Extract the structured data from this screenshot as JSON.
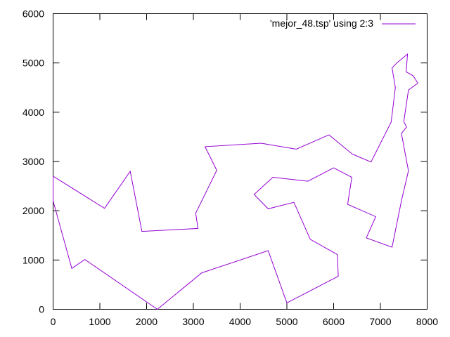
{
  "chart_data": {
    "type": "line",
    "title": "",
    "xlabel": "",
    "ylabel": "",
    "xlim": [
      0,
      8000
    ],
    "ylim": [
      0,
      6000
    ],
    "xticks": [
      0,
      1000,
      2000,
      3000,
      4000,
      5000,
      6000,
      7000,
      8000
    ],
    "yticks": [
      0,
      1000,
      2000,
      3000,
      4000,
      5000,
      6000
    ],
    "grid": false,
    "legend_position": "top-right",
    "series": [
      {
        "name": "'mejor_48.tsp' using 2:3",
        "color": "#9400d3",
        "points": [
          [
            0,
            2700
          ],
          [
            0,
            2200
          ],
          [
            400,
            830
          ],
          [
            680,
            1010
          ],
          [
            2230,
            0
          ],
          [
            3180,
            740
          ],
          [
            4600,
            1190
          ],
          [
            5000,
            130
          ],
          [
            6100,
            670
          ],
          [
            6080,
            1110
          ],
          [
            5500,
            1420
          ],
          [
            5150,
            2170
          ],
          [
            4600,
            2040
          ],
          [
            4300,
            2330
          ],
          [
            4700,
            2680
          ],
          [
            5450,
            2600
          ],
          [
            6000,
            2870
          ],
          [
            6390,
            2680
          ],
          [
            6300,
            2130
          ],
          [
            6900,
            1880
          ],
          [
            6700,
            1450
          ],
          [
            7250,
            1260
          ],
          [
            7450,
            2200
          ],
          [
            7600,
            2810
          ],
          [
            7450,
            3570
          ],
          [
            7560,
            3700
          ],
          [
            7500,
            3810
          ],
          [
            7600,
            4450
          ],
          [
            7800,
            4590
          ],
          [
            7700,
            4740
          ],
          [
            7550,
            4820
          ],
          [
            7580,
            5180
          ],
          [
            7350,
            5000
          ],
          [
            7250,
            4900
          ],
          [
            7320,
            4500
          ],
          [
            7230,
            3800
          ],
          [
            6800,
            2990
          ],
          [
            6400,
            3150
          ],
          [
            5900,
            3540
          ],
          [
            5200,
            3250
          ],
          [
            4450,
            3370
          ],
          [
            3250,
            3300
          ],
          [
            3500,
            2820
          ],
          [
            3050,
            1950
          ],
          [
            3100,
            1640
          ],
          [
            1900,
            1580
          ],
          [
            1650,
            2800
          ],
          [
            1100,
            2050
          ],
          [
            0,
            2700
          ]
        ]
      }
    ]
  }
}
